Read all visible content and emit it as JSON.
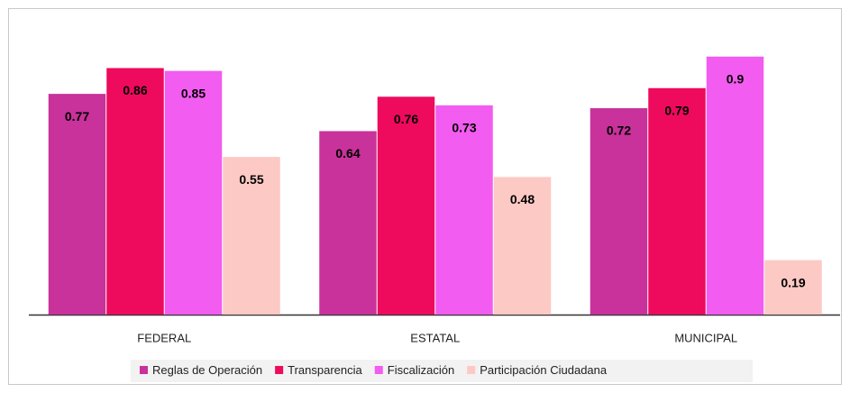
{
  "chart_data": {
    "type": "bar",
    "categories": [
      "FEDERAL",
      "ESTATAL",
      "MUNICIPAL"
    ],
    "series": [
      {
        "name": "Reglas de Operación",
        "color": "#c8329a",
        "values": [
          0.77,
          0.64,
          0.72
        ]
      },
      {
        "name": "Transparencia",
        "color": "#ee0a5c",
        "values": [
          0.86,
          0.76,
          0.79
        ]
      },
      {
        "name": "Fiscalización",
        "color": "#f25cf0",
        "values": [
          0.85,
          0.73,
          0.9
        ]
      },
      {
        "name": "Participación Ciudadana",
        "color": "#fdc9c5",
        "values": [
          0.55,
          0.48,
          0.19
        ]
      }
    ],
    "legend": "bottom"
  }
}
